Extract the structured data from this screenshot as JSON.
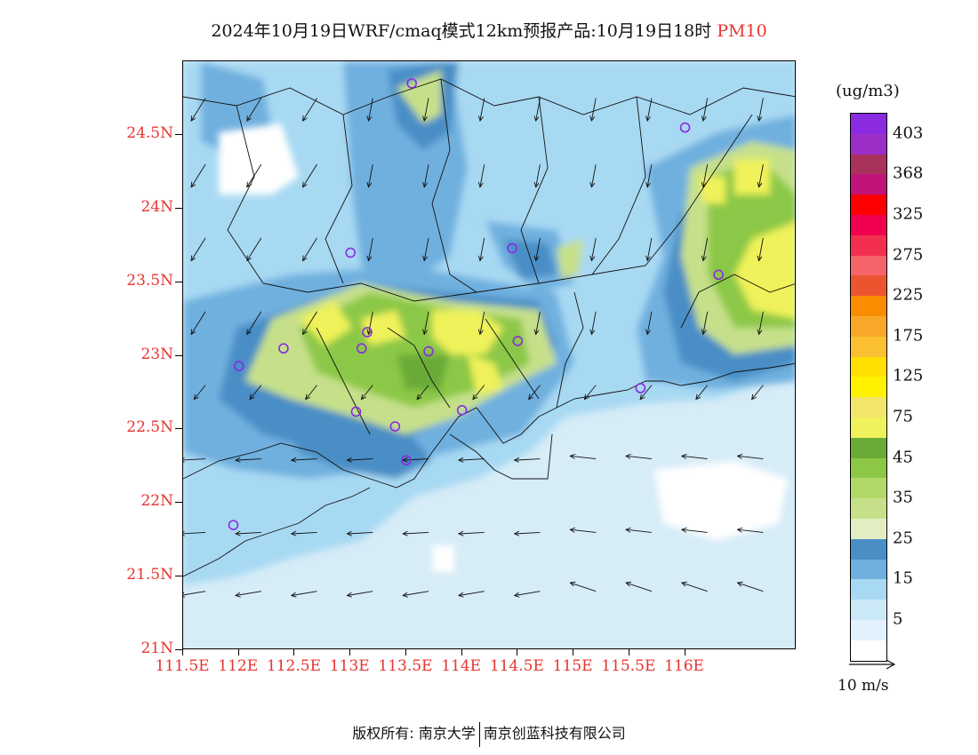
{
  "title": {
    "main": "2024年10月19日WRF/cmaq模式12km预报产品:10月19日18时",
    "tag": "PM10"
  },
  "axes": {
    "lat_labels": [
      "24.5N",
      "24N",
      "23.5N",
      "23N",
      "22.5N",
      "22N",
      "21.5N",
      "21N"
    ],
    "lat_values": [
      24.5,
      24.0,
      23.5,
      23.0,
      22.5,
      22.0,
      21.5,
      21.0
    ],
    "lon_labels": [
      "111.5E",
      "112E",
      "112.5E",
      "113E",
      "113.5E",
      "114E",
      "114.5E",
      "115E",
      "115.5E",
      "116E"
    ],
    "lon_values": [
      111.5,
      112.0,
      112.5,
      113.0,
      113.5,
      114.0,
      114.5,
      115.0,
      115.5,
      116.0
    ],
    "lat_range": [
      21.0,
      25.0
    ],
    "lon_range": [
      111.5,
      117.0
    ]
  },
  "legend": {
    "unit": "(ug/m3)",
    "colors": [
      "#8a2be2",
      "#9c2fc8",
      "#a8325c",
      "#c0147a",
      "#ff0000",
      "#f0004f",
      "#f2304e",
      "#f5646a",
      "#ea5530",
      "#fa8c00",
      "#f7a829",
      "#fbbf32",
      "#ffe000",
      "#fff200",
      "#f3e56a",
      "#eff25a",
      "#6aab38",
      "#8cc846",
      "#b2d86a",
      "#c6e08a",
      "#e2edc4",
      "#4a8ec6",
      "#6fb0df",
      "#a8d9f3",
      "#cbe8f7",
      "#e2f1fb",
      "#ffffff"
    ],
    "labels": [
      "403",
      "368",
      "325",
      "275",
      "225",
      "175",
      "125",
      "75",
      "45",
      "35",
      "25",
      "15",
      "5"
    ]
  },
  "wind_key": {
    "label": "10 m/s"
  },
  "stations": [
    [
      113.55,
      24.85
    ],
    [
      116.0,
      24.55
    ],
    [
      113.0,
      23.7
    ],
    [
      114.45,
      23.73
    ],
    [
      116.3,
      23.55
    ],
    [
      113.15,
      23.16
    ],
    [
      113.1,
      23.05
    ],
    [
      112.4,
      23.05
    ],
    [
      112.0,
      22.93
    ],
    [
      113.7,
      23.03
    ],
    [
      114.5,
      23.1
    ],
    [
      115.6,
      22.78
    ],
    [
      113.05,
      22.62
    ],
    [
      113.4,
      22.52
    ],
    [
      114.0,
      22.63
    ],
    [
      113.5,
      22.29
    ],
    [
      111.95,
      21.85
    ]
  ],
  "footer": {
    "left": "版权所有: 南京大学",
    "right": "南京创蓝科技有限公司"
  }
}
